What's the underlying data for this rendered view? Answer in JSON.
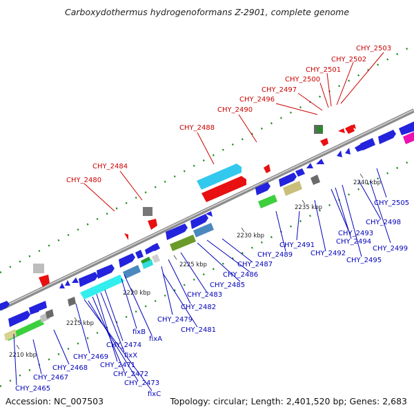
{
  "header": {
    "title": "Carboxydothermus hydrogenoformans Z-2901, complete genome"
  },
  "footer": {
    "accession": "Accession: NC_007503",
    "summary": "Topology: circular; Length: 2,401,520 bp; Genes: 2,683"
  },
  "colors": {
    "upper_label": "#cc0000",
    "lower_label": "#0000bb",
    "dot": "#1a8a1a",
    "axis": "#9a9a9a"
  },
  "scale": {
    "ticks": [
      "2210 kbp",
      "2215 kbp",
      "2220 kbp",
      "2225 kbp",
      "2230 kbp",
      "2235 kbp",
      "2240 kbp"
    ]
  },
  "genes_upper": [
    "CHY_2503",
    "CHY_2502",
    "CHY_2501",
    "CHY_2500",
    "CHY_2497",
    "CHY_2496",
    "CHY_2490",
    "CHY_2488",
    "CHY_2484",
    "CHY_2480"
  ],
  "genes_lower": [
    "CHY_2505",
    "CHY_2498",
    "CHY_2499",
    "CHY_2493",
    "CHY_2494",
    "CHY_2495",
    "CHY_2491",
    "CHY_2492",
    "CHY_2489",
    "CHY_2487",
    "CHY_2486",
    "CHY_2485",
    "CHY_2483",
    "CHY_2482",
    "CHY_2479",
    "CHY_2481",
    "fixB",
    "fixA",
    "CHY_2474",
    "fixX",
    "CHY_2471",
    "CHY_2472",
    "CHY_2473",
    "fixC",
    "CHY_2469",
    "CHY_2468",
    "CHY_2467",
    "CHY_2465"
  ]
}
